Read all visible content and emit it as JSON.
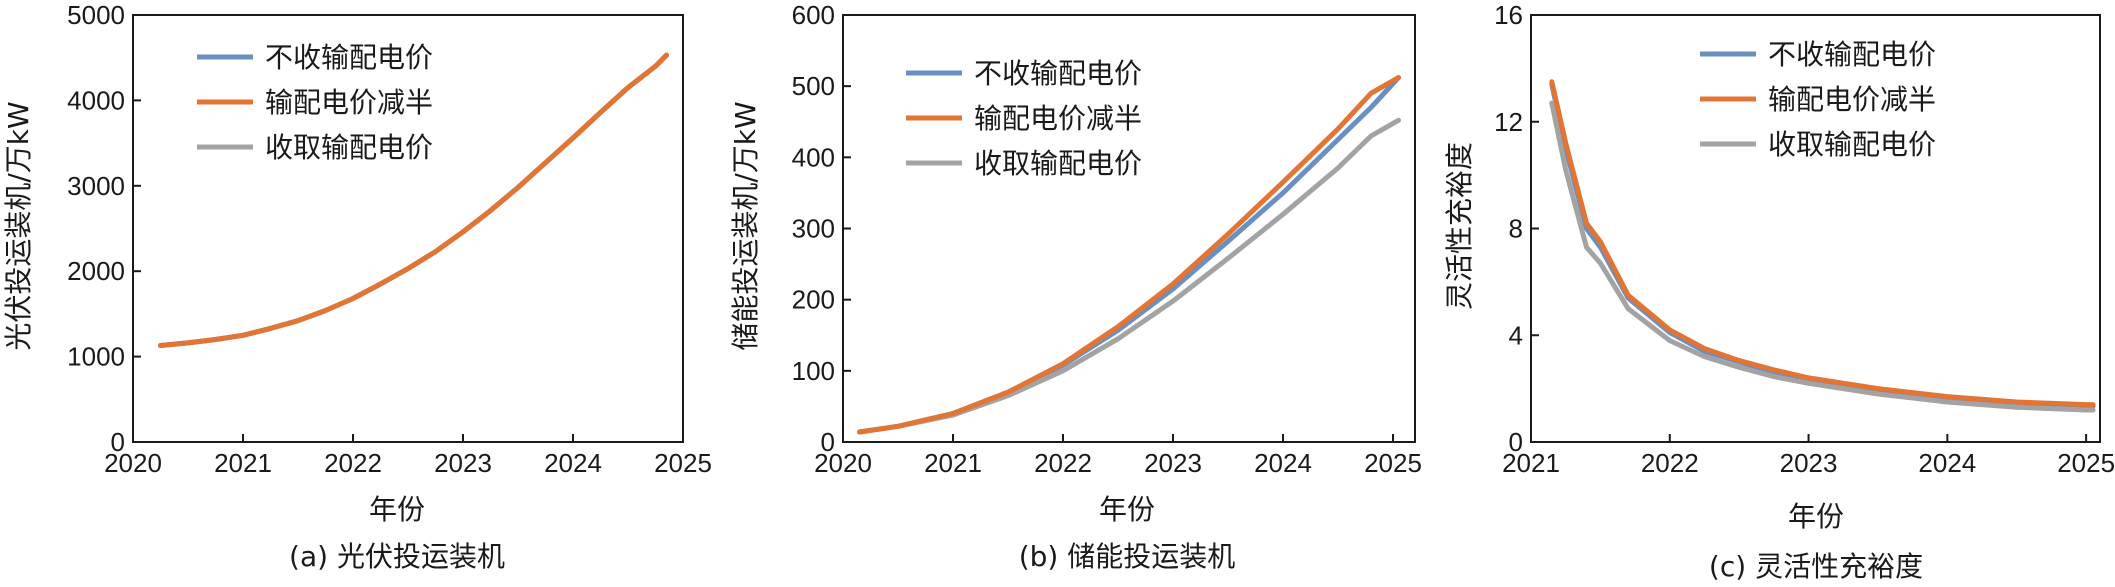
{
  "colors": {
    "blue": "#6a8fc1",
    "orange": "#e27434",
    "gray": "#a3a3a3",
    "axis": "#1a1a1a"
  },
  "chart_data": [
    {
      "type": "line",
      "caption": "(a) 光伏投运装机",
      "xlabel": "年份",
      "ylabel": "光伏投运装机/万kW",
      "xlim": [
        2020,
        2025
      ],
      "ylim": [
        0,
        5000
      ],
      "xticks": [
        "2020",
        "2021",
        "2022",
        "2023",
        "2024",
        "2025"
      ],
      "yticks": [
        "0",
        "1000",
        "2000",
        "3000",
        "4000",
        "5000"
      ],
      "legend_position": "top-left",
      "series": [
        {
          "name": "不收输配电价",
          "color": "blue",
          "x": [
            2020.25,
            2020.5,
            2020.75,
            2021.0,
            2021.25,
            2021.5,
            2021.75,
            2022.0,
            2022.25,
            2022.5,
            2022.75,
            2023.0,
            2023.25,
            2023.5,
            2023.75,
            2024.0,
            2024.25,
            2024.5,
            2024.75,
            2024.85
          ],
          "y": [
            1130,
            1160,
            1200,
            1250,
            1330,
            1420,
            1540,
            1680,
            1850,
            2030,
            2230,
            2460,
            2710,
            2980,
            3270,
            3560,
            3860,
            4150,
            4400,
            4530
          ]
        },
        {
          "name": "输配电价减半",
          "color": "orange",
          "x": [
            2020.25,
            2020.5,
            2020.75,
            2021.0,
            2021.25,
            2021.5,
            2021.75,
            2022.0,
            2022.25,
            2022.5,
            2022.75,
            2023.0,
            2023.25,
            2023.5,
            2023.75,
            2024.0,
            2024.25,
            2024.5,
            2024.75,
            2024.85
          ],
          "y": [
            1130,
            1160,
            1200,
            1250,
            1330,
            1420,
            1540,
            1680,
            1850,
            2030,
            2230,
            2460,
            2710,
            2980,
            3270,
            3560,
            3860,
            4150,
            4400,
            4530
          ]
        },
        {
          "name": "收取输配电价",
          "color": "gray",
          "x": [
            2020.25,
            2020.5,
            2020.75,
            2021.0,
            2021.25,
            2021.5,
            2021.75,
            2022.0,
            2022.25,
            2022.5,
            2022.75,
            2023.0,
            2023.25,
            2023.5,
            2023.75,
            2024.0,
            2024.25,
            2024.5,
            2024.75,
            2024.85
          ],
          "y": [
            1130,
            1160,
            1200,
            1250,
            1330,
            1420,
            1540,
            1680,
            1850,
            2030,
            2230,
            2460,
            2710,
            2980,
            3270,
            3560,
            3860,
            4150,
            4400,
            4530
          ]
        }
      ]
    },
    {
      "type": "line",
      "caption": "(b) 储能投运装机",
      "xlabel": "年份",
      "ylabel": "储能投运装机/万kW",
      "xlim": [
        2020,
        2025.2
      ],
      "ylim": [
        0,
        600
      ],
      "xticks": [
        "2020",
        "2021",
        "2022",
        "2023",
        "2024",
        "2025"
      ],
      "yticks": [
        "0",
        "100",
        "200",
        "300",
        "400",
        "500",
        "600"
      ],
      "legend_position": "top-left",
      "series": [
        {
          "name": "不收输配电价",
          "color": "blue",
          "x": [
            2020.15,
            2020.5,
            2021.0,
            2021.5,
            2022.0,
            2022.5,
            2023.0,
            2023.5,
            2024.0,
            2024.5,
            2024.8,
            2025.05
          ],
          "y": [
            14,
            22,
            40,
            70,
            108,
            157,
            215,
            282,
            350,
            425,
            470,
            512
          ]
        },
        {
          "name": "输配电价减半",
          "color": "orange",
          "x": [
            2020.15,
            2020.5,
            2021.0,
            2021.5,
            2022.0,
            2022.5,
            2023.0,
            2023.5,
            2024.0,
            2024.5,
            2024.8,
            2025.05
          ],
          "y": [
            14,
            22,
            40,
            70,
            110,
            162,
            222,
            292,
            365,
            440,
            490,
            512
          ]
        },
        {
          "name": "收取输配电价",
          "color": "gray",
          "x": [
            2020.15,
            2020.5,
            2021.0,
            2021.5,
            2022.0,
            2022.5,
            2023.0,
            2023.5,
            2024.0,
            2024.5,
            2024.8,
            2025.05
          ],
          "y": [
            14,
            22,
            38,
            65,
            100,
            145,
            198,
            258,
            320,
            385,
            430,
            452
          ]
        }
      ]
    },
    {
      "type": "line",
      "caption": "(c) 灵活性充裕度",
      "xlabel": "年份",
      "ylabel": "灵活性充裕度",
      "xlim": [
        2021,
        2025.1
      ],
      "ylim": [
        0,
        16
      ],
      "xticks": [
        "2021",
        "2022",
        "2023",
        "2024",
        "2025"
      ],
      "yticks": [
        "0",
        "4",
        "8",
        "12",
        "16"
      ],
      "legend_position": "top-center",
      "series": [
        {
          "name": "不收输配电价",
          "color": "blue",
          "x": [
            2021.15,
            2021.25,
            2021.4,
            2021.5,
            2021.7,
            2022.0,
            2022.25,
            2022.5,
            2022.75,
            2023.0,
            2023.5,
            2024.0,
            2024.5,
            2025.0,
            2025.05
          ],
          "y": [
            13.4,
            11.0,
            8.0,
            7.3,
            5.4,
            4.1,
            3.4,
            3.0,
            2.6,
            2.35,
            1.95,
            1.65,
            1.45,
            1.35,
            1.35
          ]
        },
        {
          "name": "输配电价减半",
          "color": "orange",
          "x": [
            2021.15,
            2021.25,
            2021.4,
            2021.5,
            2021.7,
            2022.0,
            2022.25,
            2022.5,
            2022.75,
            2023.0,
            2023.5,
            2024.0,
            2024.5,
            2025.0,
            2025.05
          ],
          "y": [
            13.5,
            11.2,
            8.2,
            7.5,
            5.5,
            4.2,
            3.5,
            3.05,
            2.7,
            2.4,
            2.0,
            1.7,
            1.5,
            1.4,
            1.4
          ]
        },
        {
          "name": "收取输配电价",
          "color": "gray",
          "x": [
            2021.15,
            2021.25,
            2021.4,
            2021.5,
            2021.7,
            2022.0,
            2022.25,
            2022.5,
            2022.75,
            2023.0,
            2023.5,
            2024.0,
            2024.5,
            2025.0,
            2025.05
          ],
          "y": [
            12.7,
            10.2,
            7.3,
            6.7,
            5.0,
            3.8,
            3.2,
            2.8,
            2.45,
            2.2,
            1.8,
            1.5,
            1.3,
            1.2,
            1.2
          ]
        }
      ]
    }
  ]
}
